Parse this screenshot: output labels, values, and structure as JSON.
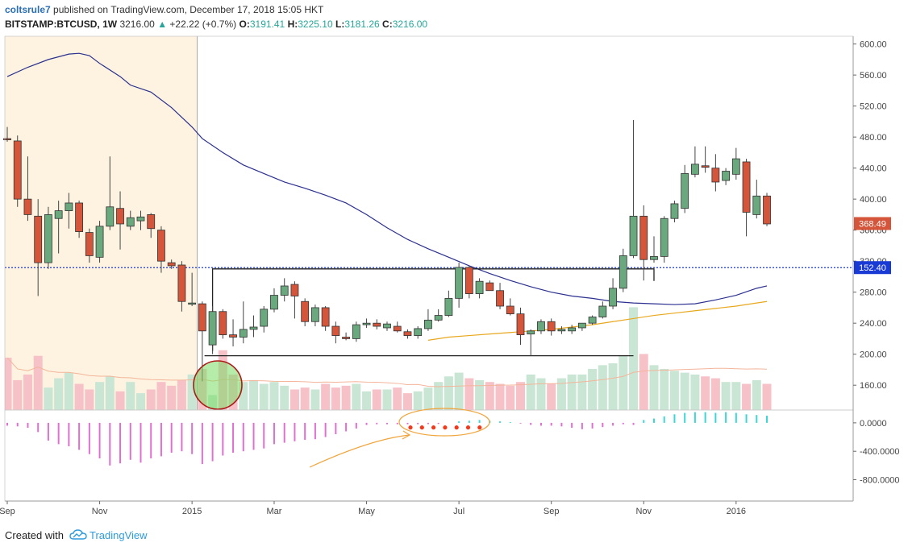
{
  "header": {
    "user": "coltsrule7",
    "published_text": "published on TradingView.com, December 17, 2018 15:05 HKT",
    "symbol": "BITSTAMP:BTCUSD, 1W",
    "price": "3216.00",
    "change_arrow": "▲",
    "change": "+22.22 (+0.7%)",
    "o_label": "O:",
    "o_value": "3191.41",
    "h_label": "H:",
    "h_value": "3225.10",
    "l_label": "L:",
    "l_value": "3181.26",
    "c_label": "C:",
    "c_value": "3216.00"
  },
  "footer": {
    "created_with": "Created with",
    "brand": "TradingView"
  },
  "colors": {
    "up": "#6aa87e",
    "down": "#d4553a",
    "ma_blue": "#2b2f8f",
    "ma_orange": "#e8a81d",
    "vol_up": "#c9e6d4",
    "vol_down": "#f7c1c8",
    "macd_down": "#e06fd1",
    "macd_up": "#3bd6d6",
    "highlight": "#fdf3e0",
    "price_label": "#d4553a",
    "vol_label": "#1a3ad6"
  },
  "chart_data": {
    "type": "candlestick",
    "price_axis": {
      "ticks": [
        "600.00",
        "560.00",
        "520.00",
        "480.00",
        "440.00",
        "400.00",
        "360.00",
        "320.00",
        "280.00",
        "240.00",
        "200.00",
        "160.00"
      ],
      "ylim": [
        128,
        610
      ]
    },
    "macd_axis": {
      "ticks": [
        "0.0000",
        "-400.0000",
        "-800.0000"
      ],
      "ylim": [
        -1100,
        180
      ]
    },
    "x_ticks": [
      "Sep",
      "Nov",
      "2015",
      "Mar",
      "May",
      "Jul",
      "Sep",
      "Nov",
      "2016"
    ],
    "x_tick_index": [
      0,
      9,
      18,
      26,
      35,
      44,
      53,
      62,
      71
    ],
    "last_price_label": "368.49",
    "volume_label": "152.40",
    "volume_level": 152.4,
    "candles": [
      {
        "o": 478,
        "h": 493,
        "l": 474,
        "c": 477
      },
      {
        "o": 475,
        "h": 482,
        "l": 390,
        "c": 400
      },
      {
        "o": 400,
        "h": 455,
        "l": 372,
        "c": 380
      },
      {
        "o": 378,
        "h": 400,
        "l": 275,
        "c": 318
      },
      {
        "o": 318,
        "h": 390,
        "l": 310,
        "c": 380
      },
      {
        "o": 375,
        "h": 398,
        "l": 330,
        "c": 385
      },
      {
        "o": 385,
        "h": 408,
        "l": 362,
        "c": 395
      },
      {
        "o": 395,
        "h": 398,
        "l": 350,
        "c": 358
      },
      {
        "o": 357,
        "h": 362,
        "l": 318,
        "c": 327
      },
      {
        "o": 325,
        "h": 372,
        "l": 318,
        "c": 365
      },
      {
        "o": 365,
        "h": 455,
        "l": 360,
        "c": 390
      },
      {
        "o": 388,
        "h": 410,
        "l": 335,
        "c": 368
      },
      {
        "o": 365,
        "h": 385,
        "l": 360,
        "c": 376
      },
      {
        "o": 372,
        "h": 385,
        "l": 360,
        "c": 377
      },
      {
        "o": 380,
        "h": 382,
        "l": 350,
        "c": 362
      },
      {
        "o": 360,
        "h": 365,
        "l": 305,
        "c": 320
      },
      {
        "o": 318,
        "h": 322,
        "l": 310,
        "c": 314
      },
      {
        "o": 315,
        "h": 320,
        "l": 255,
        "c": 268
      },
      {
        "o": 265,
        "h": 305,
        "l": 262,
        "c": 266
      },
      {
        "o": 265,
        "h": 268,
        "l": 165,
        "c": 230
      },
      {
        "o": 212,
        "h": 262,
        "l": 200,
        "c": 255
      },
      {
        "o": 255,
        "h": 258,
        "l": 220,
        "c": 225
      },
      {
        "o": 225,
        "h": 245,
        "l": 210,
        "c": 222
      },
      {
        "o": 222,
        "h": 268,
        "l": 214,
        "c": 232
      },
      {
        "o": 232,
        "h": 250,
        "l": 222,
        "c": 235
      },
      {
        "o": 236,
        "h": 262,
        "l": 228,
        "c": 258
      },
      {
        "o": 258,
        "h": 285,
        "l": 254,
        "c": 276
      },
      {
        "o": 276,
        "h": 298,
        "l": 268,
        "c": 288
      },
      {
        "o": 290,
        "h": 294,
        "l": 246,
        "c": 275
      },
      {
        "o": 268,
        "h": 272,
        "l": 236,
        "c": 242
      },
      {
        "o": 242,
        "h": 264,
        "l": 236,
        "c": 260
      },
      {
        "o": 260,
        "h": 262,
        "l": 230,
        "c": 236
      },
      {
        "o": 236,
        "h": 242,
        "l": 214,
        "c": 224
      },
      {
        "o": 222,
        "h": 228,
        "l": 218,
        "c": 220
      },
      {
        "o": 220,
        "h": 242,
        "l": 216,
        "c": 238
      },
      {
        "o": 238,
        "h": 246,
        "l": 234,
        "c": 240
      },
      {
        "o": 240,
        "h": 245,
        "l": 232,
        "c": 236
      },
      {
        "o": 234,
        "h": 242,
        "l": 230,
        "c": 239
      },
      {
        "o": 236,
        "h": 242,
        "l": 228,
        "c": 230
      },
      {
        "o": 229,
        "h": 232,
        "l": 220,
        "c": 224
      },
      {
        "o": 224,
        "h": 236,
        "l": 220,
        "c": 233
      },
      {
        "o": 233,
        "h": 258,
        "l": 230,
        "c": 244
      },
      {
        "o": 244,
        "h": 258,
        "l": 242,
        "c": 250
      },
      {
        "o": 250,
        "h": 282,
        "l": 248,
        "c": 272
      },
      {
        "o": 272,
        "h": 318,
        "l": 260,
        "c": 312
      },
      {
        "o": 312,
        "h": 314,
        "l": 272,
        "c": 278
      },
      {
        "o": 278,
        "h": 298,
        "l": 272,
        "c": 294
      },
      {
        "o": 292,
        "h": 295,
        "l": 282,
        "c": 282
      },
      {
        "o": 282,
        "h": 292,
        "l": 258,
        "c": 262
      },
      {
        "o": 262,
        "h": 272,
        "l": 250,
        "c": 252
      },
      {
        "o": 252,
        "h": 260,
        "l": 212,
        "c": 225
      },
      {
        "o": 226,
        "h": 232,
        "l": 198,
        "c": 230
      },
      {
        "o": 230,
        "h": 245,
        "l": 226,
        "c": 242
      },
      {
        "o": 242,
        "h": 246,
        "l": 224,
        "c": 230
      },
      {
        "o": 230,
        "h": 236,
        "l": 226,
        "c": 232
      },
      {
        "o": 230,
        "h": 238,
        "l": 226,
        "c": 234
      },
      {
        "o": 234,
        "h": 240,
        "l": 230,
        "c": 240
      },
      {
        "o": 240,
        "h": 250,
        "l": 238,
        "c": 248
      },
      {
        "o": 248,
        "h": 268,
        "l": 246,
        "c": 262
      },
      {
        "o": 262,
        "h": 298,
        "l": 258,
        "c": 285
      },
      {
        "o": 285,
        "h": 336,
        "l": 280,
        "c": 327
      },
      {
        "o": 327,
        "h": 502,
        "l": 324,
        "c": 378
      },
      {
        "o": 378,
        "h": 392,
        "l": 295,
        "c": 322
      },
      {
        "o": 322,
        "h": 352,
        "l": 318,
        "c": 326
      },
      {
        "o": 326,
        "h": 378,
        "l": 318,
        "c": 375
      },
      {
        "o": 375,
        "h": 398,
        "l": 370,
        "c": 394
      },
      {
        "o": 388,
        "h": 444,
        "l": 382,
        "c": 433
      },
      {
        "o": 432,
        "h": 468,
        "l": 428,
        "c": 445
      },
      {
        "o": 443,
        "h": 468,
        "l": 434,
        "c": 441
      },
      {
        "o": 440,
        "h": 458,
        "l": 410,
        "c": 422
      },
      {
        "o": 424,
        "h": 440,
        "l": 418,
        "c": 436
      },
      {
        "o": 432,
        "h": 466,
        "l": 425,
        "c": 452
      },
      {
        "o": 448,
        "h": 452,
        "l": 352,
        "c": 383
      },
      {
        "o": 380,
        "h": 425,
        "l": 375,
        "c": 404
      },
      {
        "o": 404,
        "h": 408,
        "l": 365,
        "c": 368
      }
    ],
    "volume": [
      56,
      32,
      38,
      58,
      24,
      34,
      40,
      28,
      22,
      30,
      36,
      20,
      30,
      18,
      22,
      30,
      26,
      32,
      38,
      44,
      16,
      64,
      38,
      30,
      32,
      28,
      30,
      26,
      22,
      24,
      22,
      28,
      24,
      26,
      28,
      20,
      22,
      22,
      24,
      18,
      20,
      24,
      30,
      36,
      40,
      34,
      32,
      30,
      28,
      26,
      30,
      38,
      34,
      28,
      34,
      38,
      38,
      44,
      48,
      50,
      58,
      110,
      60,
      48,
      44,
      42,
      40,
      38,
      36,
      34,
      30,
      30,
      28,
      32,
      28
    ],
    "macd": [
      -40,
      -50,
      -70,
      -130,
      -250,
      -300,
      -330,
      -380,
      -440,
      -500,
      -600,
      -570,
      -520,
      -560,
      -500,
      -470,
      -420,
      -400,
      -440,
      -580,
      -540,
      -460,
      -420,
      -400,
      -380,
      -360,
      -300,
      -280,
      -260,
      -240,
      -230,
      -200,
      -160,
      -120,
      -80,
      -30,
      -20,
      -20,
      -20,
      -20,
      -20,
      -18,
      -16,
      0,
      20,
      30,
      40,
      30,
      20,
      10,
      -10,
      -30,
      -40,
      -40,
      -50,
      -70,
      -90,
      -80,
      -60,
      -40,
      -20,
      -30,
      40,
      60,
      90,
      120,
      140,
      150,
      150,
      140,
      150,
      140,
      120,
      110,
      100
    ],
    "macd_markers": [
      -20,
      -20,
      -20,
      -20,
      -20,
      -20,
      -20
    ],
    "ma_blue": [
      {
        "i": 0,
        "v": 558
      },
      {
        "i": 2,
        "v": 570
      },
      {
        "i": 4,
        "v": 580
      },
      {
        "i": 6,
        "v": 587
      },
      {
        "i": 7,
        "v": 588
      },
      {
        "i": 8,
        "v": 585
      },
      {
        "i": 9,
        "v": 575
      },
      {
        "i": 11,
        "v": 558
      },
      {
        "i": 12,
        "v": 547
      },
      {
        "i": 14,
        "v": 538
      },
      {
        "i": 16,
        "v": 518
      },
      {
        "i": 18,
        "v": 493
      },
      {
        "i": 19,
        "v": 478
      },
      {
        "i": 21,
        "v": 460
      },
      {
        "i": 23,
        "v": 444
      },
      {
        "i": 25,
        "v": 433
      },
      {
        "i": 27,
        "v": 422
      },
      {
        "i": 29,
        "v": 414
      },
      {
        "i": 31,
        "v": 405
      },
      {
        "i": 33,
        "v": 395
      },
      {
        "i": 35,
        "v": 380
      },
      {
        "i": 37,
        "v": 363
      },
      {
        "i": 39,
        "v": 348
      },
      {
        "i": 41,
        "v": 336
      },
      {
        "i": 43,
        "v": 325
      },
      {
        "i": 45,
        "v": 314
      },
      {
        "i": 47,
        "v": 304
      },
      {
        "i": 49,
        "v": 295
      },
      {
        "i": 51,
        "v": 287
      },
      {
        "i": 53,
        "v": 280
      },
      {
        "i": 55,
        "v": 275
      },
      {
        "i": 57,
        "v": 272
      },
      {
        "i": 59,
        "v": 268
      },
      {
        "i": 61,
        "v": 266
      },
      {
        "i": 63,
        "v": 265
      },
      {
        "i": 65,
        "v": 264
      },
      {
        "i": 67,
        "v": 265
      },
      {
        "i": 69,
        "v": 270
      },
      {
        "i": 71,
        "v": 276
      },
      {
        "i": 73,
        "v": 285
      },
      {
        "i": 74,
        "v": 288
      }
    ],
    "ma_orange": [
      {
        "i": 41,
        "v": 218
      },
      {
        "i": 43,
        "v": 222
      },
      {
        "i": 45,
        "v": 224
      },
      {
        "i": 47,
        "v": 226
      },
      {
        "i": 49,
        "v": 228
      },
      {
        "i": 51,
        "v": 230
      },
      {
        "i": 53,
        "v": 232
      },
      {
        "i": 55,
        "v": 235
      },
      {
        "i": 57,
        "v": 238
      },
      {
        "i": 59,
        "v": 242
      },
      {
        "i": 61,
        "v": 246
      },
      {
        "i": 63,
        "v": 250
      },
      {
        "i": 65,
        "v": 253
      },
      {
        "i": 67,
        "v": 256
      },
      {
        "i": 69,
        "v": 259
      },
      {
        "i": 71,
        "v": 262
      },
      {
        "i": 73,
        "v": 266
      },
      {
        "i": 74,
        "v": 268
      }
    ],
    "range_box": {
      "top": 310,
      "bottom": 198,
      "i_start": 20,
      "i_end_top": 63,
      "i_end_bottom": 61
    },
    "highlight_range": {
      "i_start": 0,
      "i_end": 18.5
    }
  }
}
